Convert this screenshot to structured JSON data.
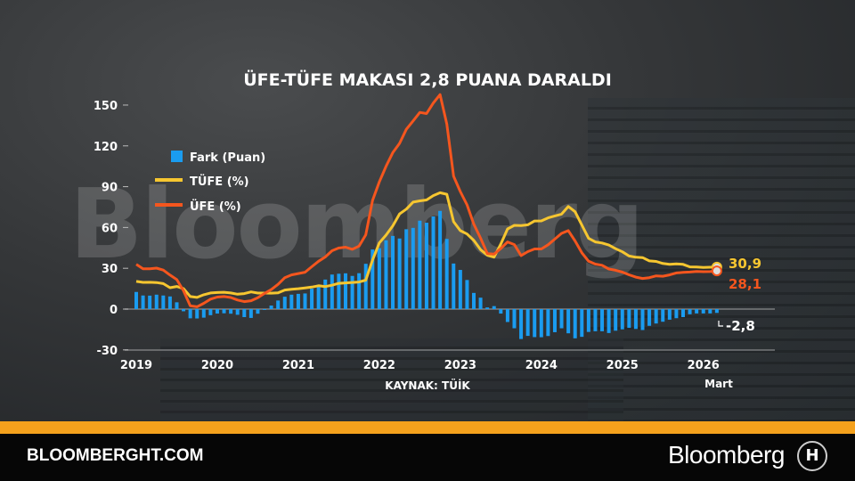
{
  "chart_data": {
    "type": "bar+line",
    "title": "ÜFE-TÜFE MAKASI 2,8 PUANA DARALDI",
    "source": "KAYNAK: TÜİK",
    "ylim": [
      -30,
      150
    ],
    "yticks": [
      "150",
      "120",
      "90",
      "60",
      "30",
      "0",
      "-30"
    ],
    "ytick_values": [
      150,
      120,
      90,
      60,
      30,
      0,
      -30
    ],
    "xtick_labels": [
      "2019",
      "2020",
      "2021",
      "2022",
      "2023",
      "2024",
      "2025",
      "2026"
    ],
    "last_label": "Mart",
    "start": "2019-01",
    "end": "2026-03",
    "frequency": "monthly",
    "legend_position": "top-left",
    "series": [
      {
        "name": "Fark (Puan)",
        "kind": "bar",
        "color": "#1a9cf0",
        "values": [
          12.6,
          10.0,
          9.9,
          10.6,
          10.0,
          9.3,
          5.0,
          -1.6,
          -6.8,
          -6.9,
          -6.3,
          -4.5,
          -3.3,
          -3.1,
          -3.4,
          -4.2,
          -5.9,
          -6.5,
          -3.4,
          -0.2,
          2.6,
          6.3,
          9.1,
          10.6,
          11.2,
          11.5,
          15.0,
          18.0,
          21.7,
          25.4,
          26.0,
          26.3,
          24.4,
          26.4,
          33.3,
          43.8,
          44.8,
          50.6,
          53.8,
          51.9,
          58.7,
          59.7,
          65.0,
          63.5,
          68.1,
          72.2,
          51.6,
          33.5,
          28.8,
          21.4,
          11.9,
          8.4,
          1.2,
          2.2,
          -3.3,
          -9.5,
          -14.1,
          -22.0,
          -19.7,
          -20.6,
          -20.7,
          -19.8,
          -17.0,
          -14.1,
          -17.8,
          -21.5,
          -20.4,
          -16.8,
          -16.3,
          -16.3,
          -17.6,
          -15.9,
          -14.9,
          -13.8,
          -14.6,
          -15.4,
          -12.3,
          -10.6,
          -9.3,
          -7.8,
          -6.7,
          -5.9,
          -3.8,
          -3.2,
          -3.2,
          -3.2,
          -2.8
        ]
      },
      {
        "name": "TÜFE (%)",
        "kind": "line",
        "color": "#f6c630",
        "values": [
          20.35,
          19.67,
          19.71,
          19.5,
          18.71,
          15.72,
          16.65,
          15.01,
          9.26,
          8.55,
          10.56,
          11.84,
          12.15,
          12.37,
          11.86,
          10.94,
          11.39,
          12.62,
          11.76,
          11.77,
          11.75,
          11.89,
          14.03,
          14.6,
          14.97,
          15.61,
          16.19,
          17.14,
          16.59,
          17.53,
          18.95,
          19.25,
          19.58,
          19.89,
          21.31,
          36.08,
          48.69,
          54.44,
          61.14,
          69.97,
          73.5,
          78.62,
          79.6,
          80.21,
          83.45,
          85.51,
          84.39,
          64.27,
          57.68,
          55.18,
          50.51,
          43.68,
          39.59,
          38.21,
          47.83,
          58.94,
          61.53,
          61.36,
          61.98,
          64.77,
          64.86,
          67.07,
          68.5,
          69.8,
          75.45,
          71.6,
          61.78,
          51.97,
          49.38,
          48.58,
          47.09,
          44.38,
          42.12,
          39.05,
          38.1,
          37.86,
          35.41,
          35.05,
          33.52,
          32.95,
          33.29,
          32.87,
          31.07,
          30.89,
          30.65,
          30.8,
          30.9
        ]
      },
      {
        "name": "ÜFE (%)",
        "kind": "line",
        "color": "#f5561e",
        "values": [
          32.93,
          29.64,
          29.64,
          30.12,
          28.71,
          25.04,
          21.66,
          13.45,
          2.45,
          1.7,
          4.26,
          7.36,
          8.84,
          9.26,
          8.5,
          6.71,
          5.53,
          6.17,
          8.33,
          11.53,
          14.33,
          18.2,
          23.11,
          25.15,
          26.16,
          27.09,
          31.2,
          35.17,
          38.33,
          42.89,
          44.92,
          45.52,
          43.96,
          46.31,
          54.62,
          79.89,
          93.53,
          105.01,
          114.97,
          121.82,
          132.16,
          138.31,
          144.61,
          143.75,
          151.5,
          157.69,
          136.02,
          97.72,
          86.46,
          76.61,
          62.43,
          52.11,
          40.76,
          40.42,
          44.5,
          49.41,
          47.44,
          39.39,
          42.25,
          44.22,
          44.2,
          47.29,
          51.47,
          55.66,
          57.68,
          50.09,
          41.37,
          35.17,
          33.09,
          32.24,
          29.47,
          28.52,
          27.2,
          25.21,
          23.5,
          22.5,
          23.13,
          24.45,
          24.19,
          25.16,
          26.59,
          27.0,
          27.23,
          27.67,
          27.5,
          27.6,
          28.1
        ]
      }
    ],
    "end_labels": {
      "tufe": "30,9",
      "ufe": "28,1",
      "fark": "-2,8"
    }
  },
  "footer": {
    "site": "BLOOMBERGHT.COM",
    "brand": "Bloomberg",
    "brand_icon": "H"
  },
  "watermark": "Bloomberg"
}
